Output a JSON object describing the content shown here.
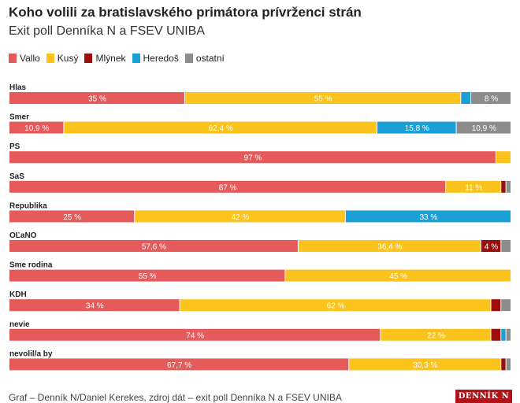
{
  "title": "Koho volili za bratislavského primátora prívrženci strán",
  "subtitle": "Exit poll Denníka N a FSEV UNIBA",
  "footer": "Graf – Denník N/Daniel Kerekes, zdroj dát – exit poll Denníka N a FSEV UNIBA",
  "logo_text": "DENNÍK N",
  "chart_data": {
    "type": "bar",
    "stacked": true,
    "orientation": "horizontal",
    "title": "Koho volili za bratislavského primátora prívrženci strán",
    "subtitle": "Exit poll Denníka N a FSEV UNIBA",
    "legend_position": "top-left",
    "xlim": [
      0,
      100
    ],
    "grid": false,
    "series": [
      {
        "name": "Vallo",
        "color": "#e55a5a"
      },
      {
        "name": "Kusý",
        "color": "#fbc31c"
      },
      {
        "name": "Mlýnek",
        "color": "#9b0e0e"
      },
      {
        "name": "Heredoš",
        "color": "#1aa0d6"
      },
      {
        "name": "ostatní",
        "color": "#8c8c8c"
      }
    ],
    "categories": [
      {
        "name": "Hlas",
        "values": [
          35,
          55,
          0,
          2,
          8
        ],
        "labels": [
          "35 %",
          "55 %",
          "",
          "",
          "8 %"
        ]
      },
      {
        "name": "Smer",
        "values": [
          10.9,
          62.4,
          0,
          15.8,
          10.9
        ],
        "labels": [
          "10,9 %",
          "62,4 %",
          "",
          "15,8 %",
          "10,9 %"
        ]
      },
      {
        "name": "PS",
        "values": [
          97,
          3,
          0,
          0,
          0
        ],
        "labels": [
          "97 %",
          "",
          "",
          "",
          ""
        ]
      },
      {
        "name": "SaS",
        "values": [
          87,
          11,
          1,
          0,
          1
        ],
        "labels": [
          "87 %",
          "11 %",
          "",
          "",
          ""
        ]
      },
      {
        "name": "Republika",
        "values": [
          25,
          42,
          0,
          33,
          0
        ],
        "labels": [
          "25 %",
          "42 %",
          "",
          "33 %",
          ""
        ]
      },
      {
        "name": "OĽaNO",
        "values": [
          57.6,
          36.4,
          4,
          0,
          2
        ],
        "labels": [
          "57,6 %",
          "36,4 %",
          "4 %",
          "",
          ""
        ]
      },
      {
        "name": "Sme rodina",
        "values": [
          55,
          45,
          0,
          0,
          0
        ],
        "labels": [
          "55 %",
          "45 %",
          "",
          "",
          ""
        ]
      },
      {
        "name": "KDH",
        "values": [
          34,
          62,
          2,
          0,
          2
        ],
        "labels": [
          "34 %",
          "62 %",
          "",
          "",
          ""
        ]
      },
      {
        "name": "nevie",
        "values": [
          74,
          22,
          2,
          1,
          1
        ],
        "labels": [
          "74 %",
          "22 %",
          "",
          "",
          ""
        ]
      },
      {
        "name": "nevolil/a by",
        "values": [
          67.7,
          30.3,
          1,
          0,
          1
        ],
        "labels": [
          "67,7 %",
          "30,3 %",
          "",
          "",
          ""
        ]
      }
    ]
  }
}
